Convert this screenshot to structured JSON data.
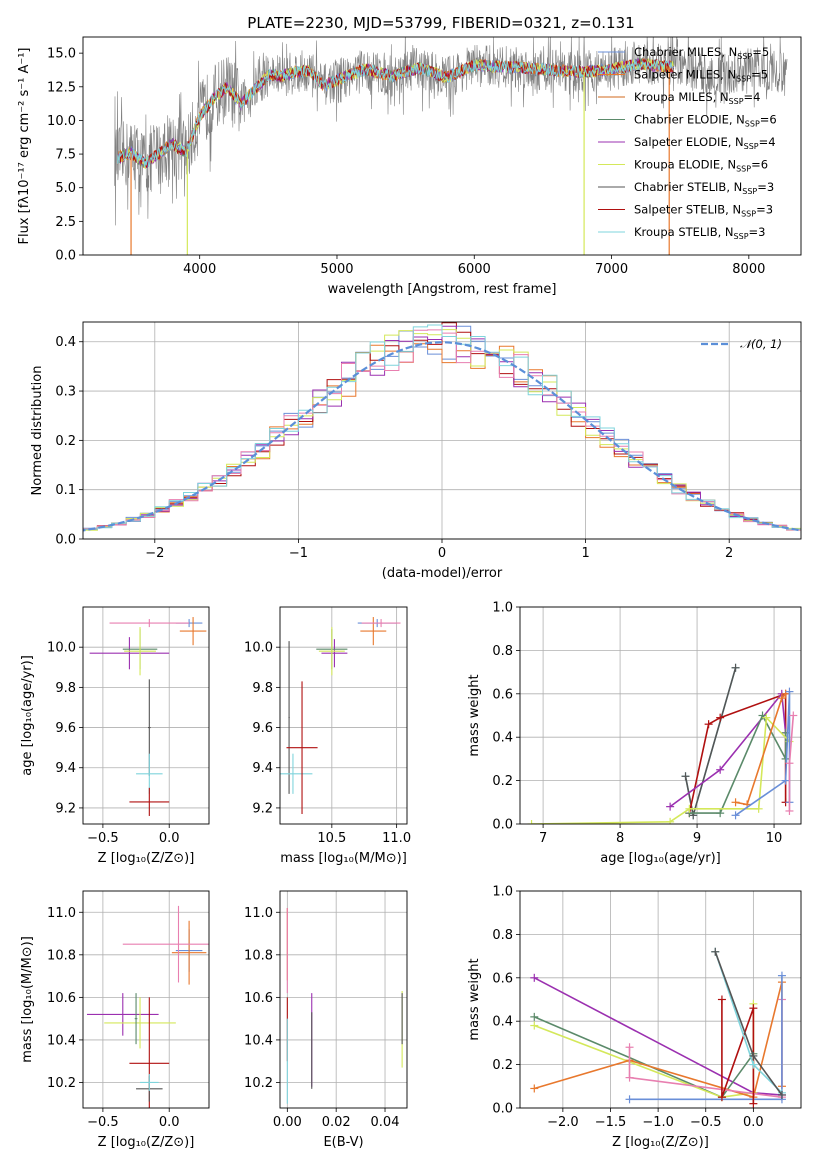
{
  "figure": {
    "title": "PLATE=2230, MJD=53799, FIBERID=0321, z=0.131"
  },
  "colors": {
    "Chabrier MILES": "#6a8fd8",
    "Salpeter MILES": "#e8782d",
    "Kroupa MILES": "#d2691e",
    "Chabrier ELODIE": "#5b8a6a",
    "Salpeter ELODIE": "#9b30b0",
    "Kroupa ELODIE": "#d4e85a",
    "Chabrier STELIB": "#555555",
    "Salpeter STELIB": "#b01010",
    "Kroupa STELIB": "#7fd4dc",
    "data": "#808080",
    "pink": "#e87fb0",
    "normal": "#5b8fd8"
  },
  "chart_data": [
    {
      "id": "spectrum",
      "type": "line",
      "title": "PLATE=2230, MJD=53799, FIBERID=0321, z=0.131",
      "xlabel": "wavelength [Angstrom, rest frame]",
      "ylabel": "Flux [fλ10⁻¹⁷ erg cm⁻² s⁻¹ A⁻¹]",
      "xlim": [
        3150,
        8380
      ],
      "ylim": [
        0,
        16.2
      ],
      "x_ticks": [
        4000,
        5000,
        6000,
        7000,
        8000
      ],
      "y_ticks": [
        0.0,
        2.5,
        5.0,
        7.5,
        10.0,
        12.5,
        15.0
      ],
      "grid": false,
      "legend_position": "right",
      "legend": [
        {
          "label": "Chabrier MILES, N",
          "sub": "SSP",
          "suffix": "=5",
          "color_key": "Chabrier MILES"
        },
        {
          "label": "Salpeter MILES, N",
          "sub": "SSP",
          "suffix": "=5",
          "color_key": "Salpeter MILES"
        },
        {
          "label": "Kroupa MILES, N",
          "sub": "SSP",
          "suffix": "=4",
          "color_key": "Kroupa MILES"
        },
        {
          "label": "Chabrier ELODIE, N",
          "sub": "SSP",
          "suffix": "=6",
          "color_key": "Chabrier ELODIE"
        },
        {
          "label": "Salpeter ELODIE, N",
          "sub": "SSP",
          "suffix": "=4",
          "color_key": "Salpeter ELODIE"
        },
        {
          "label": "Kroupa ELODIE, N",
          "sub": "SSP",
          "suffix": "=6",
          "color_key": "Kroupa ELODIE"
        },
        {
          "label": "Chabrier STELIB, N",
          "sub": "SSP",
          "suffix": "=3",
          "color_key": "Chabrier STELIB"
        },
        {
          "label": "Salpeter STELIB, N",
          "sub": "SSP",
          "suffix": "=3",
          "color_key": "Salpeter STELIB"
        },
        {
          "label": "Kroupa STELIB, N",
          "sub": "SSP",
          "suffix": "=3",
          "color_key": "Kroupa STELIB"
        }
      ],
      "continuum_x": [
        3400,
        3500,
        3600,
        3700,
        3800,
        3900,
        4000,
        4100,
        4200,
        4300,
        4400,
        4500,
        4600,
        4700,
        4800,
        4900,
        5000,
        5200,
        5400,
        5600,
        5800,
        6000,
        6200,
        6400,
        6600,
        6800,
        7000,
        7200,
        7400
      ],
      "continuum_y": [
        7.2,
        7.6,
        6.8,
        7.5,
        8.3,
        7.6,
        10.3,
        11.6,
        12.5,
        11.2,
        12.3,
        13.4,
        13.3,
        13.6,
        13.7,
        12.6,
        13.0,
        13.8,
        13.3,
        13.9,
        13.2,
        14.1,
        14.0,
        13.9,
        13.7,
        13.6,
        13.8,
        14.2,
        14.0
      ],
      "model_x_range": [
        3400,
        7450
      ],
      "data_x_range": [
        3380,
        8280
      ],
      "drops": [
        {
          "x": 3500,
          "color_key": "Salpeter MILES"
        },
        {
          "x": 3910,
          "color_key": "Kroupa ELODIE"
        },
        {
          "x": 6800,
          "color_key": "Kroupa ELODIE"
        },
        {
          "x": 7420,
          "color_key": "Salpeter MILES"
        }
      ]
    },
    {
      "id": "residuals",
      "type": "line",
      "xlabel": "(data-model)/error",
      "ylabel": "Normed distribution",
      "xlim": [
        -2.5,
        2.5
      ],
      "ylim": [
        0,
        0.44
      ],
      "x_ticks": [
        -2,
        -1,
        0,
        1,
        2
      ],
      "y_ticks": [
        0.0,
        0.1,
        0.2,
        0.3,
        0.4
      ],
      "grid": true,
      "legend_position": "top-right",
      "legend_label": "𝒩(0, 1)",
      "bin_width": 0.1,
      "series_colors": [
        "Chabrier MILES",
        "Salpeter MILES",
        "Salpeter STELIB",
        "Salpeter ELODIE",
        "Kroupa ELODIE",
        "pink",
        "Kroupa STELIB"
      ]
    },
    {
      "id": "age-vs-z",
      "type": "scatter",
      "xlabel": "Z [log₁₀(Z/Z⊙)]",
      "ylabel": "age  [log₁₀(age/yr)]",
      "xlim": [
        -0.65,
        0.3
      ],
      "ylim": [
        9.12,
        10.2
      ],
      "x_ticks": [
        -0.5,
        0.0
      ],
      "y_ticks": [
        9.2,
        9.4,
        9.6,
        9.8,
        10.0
      ],
      "grid": true,
      "points": [
        {
          "x": 0.15,
          "y": 10.12,
          "xe": 0.1,
          "ye": 0.02,
          "c": "Chabrier MILES"
        },
        {
          "x": 0.18,
          "y": 10.08,
          "xe": 0.1,
          "ye": 0.07,
          "c": "Salpeter MILES"
        },
        {
          "x": -0.15,
          "y": 10.12,
          "xe": 0.3,
          "ye": 0.02,
          "c": "pink"
        },
        {
          "x": -0.3,
          "y": 9.97,
          "xe": 0.3,
          "ye": 0.08,
          "c": "Salpeter ELODIE"
        },
        {
          "x": -0.22,
          "y": 9.99,
          "xe": 0.13,
          "ye": 0.1,
          "c": "Chabrier ELODIE"
        },
        {
          "x": -0.22,
          "y": 9.98,
          "xe": 0.12,
          "ye": 0.12,
          "c": "Kroupa ELODIE"
        },
        {
          "x": -0.15,
          "y": 9.6,
          "xe": 0.01,
          "ye": 0.24,
          "c": "Chabrier STELIB"
        },
        {
          "x": -0.15,
          "y": 9.37,
          "xe": 0.1,
          "ye": 0.1,
          "c": "Kroupa STELIB"
        },
        {
          "x": -0.15,
          "y": 9.23,
          "xe": 0.15,
          "ye": 0.07,
          "c": "Salpeter STELIB"
        }
      ]
    },
    {
      "id": "age-vs-mass",
      "type": "scatter",
      "xlabel": "mass [log₁₀(M/M⊙)]",
      "ylabel": "",
      "xlim": [
        10.1,
        11.08
      ],
      "ylim": [
        9.12,
        10.2
      ],
      "x_ticks": [
        10.5,
        11.0
      ],
      "y_ticks": [
        9.2,
        9.4,
        9.6,
        9.8,
        10.0
      ],
      "grid": true,
      "points": [
        {
          "x": 10.85,
          "y": 10.12,
          "xe": 0.15,
          "ye": 0.02,
          "c": "Chabrier MILES"
        },
        {
          "x": 10.82,
          "y": 10.08,
          "xe": 0.1,
          "ye": 0.07,
          "c": "Salpeter MILES"
        },
        {
          "x": 10.88,
          "y": 10.12,
          "xe": 0.15,
          "ye": 0.02,
          "c": "pink"
        },
        {
          "x": 10.52,
          "y": 9.97,
          "xe": 0.1,
          "ye": 0.07,
          "c": "Salpeter ELODIE"
        },
        {
          "x": 10.5,
          "y": 9.99,
          "xe": 0.12,
          "ye": 0.1,
          "c": "Chabrier ELODIE"
        },
        {
          "x": 10.5,
          "y": 9.98,
          "xe": 0.1,
          "ye": 0.12,
          "c": "Kroupa ELODIE"
        },
        {
          "x": 10.17,
          "y": 9.65,
          "xe": 0.005,
          "ye": 0.38,
          "c": "Chabrier STELIB"
        },
        {
          "x": 10.2,
          "y": 9.37,
          "xe": 0.15,
          "ye": 0.1,
          "c": "Kroupa STELIB"
        },
        {
          "x": 10.27,
          "y": 9.5,
          "xe": 0.12,
          "ye": 0.33,
          "c": "Salpeter STELIB"
        }
      ]
    },
    {
      "id": "weight-vs-age",
      "type": "line",
      "xlabel": "age  [log₁₀(age/yr)]",
      "ylabel": "mass weight",
      "xlim": [
        6.7,
        10.35
      ],
      "ylim": [
        0,
        1.0
      ],
      "x_ticks": [
        7,
        8,
        9,
        10
      ],
      "y_ticks": [
        0.0,
        0.2,
        0.4,
        0.6,
        0.8,
        1.0
      ],
      "grid": true,
      "series": [
        {
          "name": "",
          "c": "Kroupa STELIB",
          "x": [
            8.85,
            8.95,
            9.5
          ],
          "y": [
            0.22,
            0.04,
            0.72
          ]
        },
        {
          "name": "",
          "c": "Chabrier STELIB",
          "x": [
            8.85,
            8.95,
            9.5
          ],
          "y": [
            0.22,
            0.04,
            0.72
          ]
        },
        {
          "name": "",
          "c": "Salpeter STELIB",
          "x": [
            8.9,
            9.15,
            9.3,
            10.15,
            10.15
          ],
          "y": [
            0.05,
            0.46,
            0.49,
            0.6,
            0.1
          ]
        },
        {
          "name": "",
          "c": "Salpeter ELODIE",
          "x": [
            8.65,
            9.3,
            10.1,
            10.15
          ],
          "y": [
            0.08,
            0.25,
            0.6,
            0.42
          ]
        },
        {
          "name": "",
          "c": "Chabrier ELODIE",
          "x": [
            8.9,
            9.3,
            9.85,
            10.15,
            10.15
          ],
          "y": [
            0.05,
            0.05,
            0.5,
            0.3,
            0.42
          ]
        },
        {
          "name": "",
          "c": "Kroupa ELODIE",
          "x": [
            6.85,
            8.65,
            8.9,
            9.8,
            9.9,
            10.2
          ],
          "y": [
            0.0,
            0.01,
            0.07,
            0.07,
            0.49,
            0.38
          ]
        },
        {
          "name": "",
          "c": "Salpeter MILES",
          "x": [
            9.5,
            9.65,
            10.1,
            10.15
          ],
          "y": [
            0.1,
            0.09,
            0.58,
            0.6
          ]
        },
        {
          "name": "",
          "c": "Chabrier MILES",
          "x": [
            9.5,
            10.15,
            10.2,
            10.2
          ],
          "y": [
            0.04,
            0.2,
            0.61,
            0.1
          ]
        },
        {
          "name": "",
          "c": "pink",
          "x": [
            10.2,
            10.2,
            10.25
          ],
          "y": [
            0.06,
            0.28,
            0.5
          ]
        }
      ]
    },
    {
      "id": "mass-vs-z",
      "type": "scatter",
      "xlabel": "Z [log₁₀(Z/Z⊙)]",
      "ylabel": "mass [log₁₀(M/M⊙)]",
      "xlim": [
        -0.65,
        0.3
      ],
      "ylim": [
        10.08,
        11.1
      ],
      "x_ticks": [
        -0.5,
        0.0
      ],
      "y_ticks": [
        10.2,
        10.4,
        10.6,
        10.8,
        11.0
      ],
      "grid": true,
      "points": [
        {
          "x": 0.15,
          "y": 10.82,
          "xe": 0.1,
          "ye": 0.1,
          "c": "Chabrier MILES"
        },
        {
          "x": 0.15,
          "y": 10.81,
          "xe": 0.13,
          "ye": 0.15,
          "c": "Salpeter MILES"
        },
        {
          "x": 0.07,
          "y": 10.85,
          "xe": 0.42,
          "ye": 0.18,
          "c": "pink"
        },
        {
          "x": -0.35,
          "y": 10.52,
          "xe": 0.27,
          "ye": 0.1,
          "c": "Salpeter ELODIE"
        },
        {
          "x": -0.22,
          "y": 10.48,
          "xe": 0.27,
          "ye": 0.12,
          "c": "Kroupa ELODIE"
        },
        {
          "x": -0.25,
          "y": 10.5,
          "xe": 0.01,
          "ye": 0.12,
          "c": "Chabrier ELODIE"
        },
        {
          "x": -0.15,
          "y": 10.29,
          "xe": 0.15,
          "ye": 0.31,
          "c": "Salpeter STELIB"
        },
        {
          "x": -0.15,
          "y": 10.17,
          "xe": 0.1,
          "ye": 0.06,
          "c": "Chabrier STELIB"
        },
        {
          "x": -0.15,
          "y": 10.2,
          "xe": 0.07,
          "ye": 0.04,
          "c": "Kroupa STELIB"
        }
      ]
    },
    {
      "id": "mass-vs-ebv",
      "type": "scatter",
      "xlabel": "E(B-V)",
      "ylabel": "",
      "xlim": [
        -0.003,
        0.049
      ],
      "ylim": [
        10.08,
        11.1
      ],
      "x_ticks": [
        0.0,
        0.02,
        0.04
      ],
      "y_ticks": [
        10.2,
        10.4,
        10.6,
        10.8,
        11.0
      ],
      "grid": true,
      "points": [
        {
          "x": 0.0,
          "y": 10.85,
          "xe": 0.0,
          "ye": 0.17,
          "c": "Salpeter MILES"
        },
        {
          "x": 0.0,
          "y": 10.82,
          "xe": 0.0,
          "ye": 0.2,
          "c": "pink"
        },
        {
          "x": 0.0,
          "y": 10.45,
          "xe": 0.0,
          "ye": 0.15,
          "c": "Salpeter STELIB"
        },
        {
          "x": 0.0,
          "y": 10.3,
          "xe": 0.0,
          "ye": 0.2,
          "c": "Kroupa STELIB"
        },
        {
          "x": 0.01,
          "y": 10.4,
          "xe": 0.0,
          "ye": 0.22,
          "c": "Salpeter ELODIE"
        },
        {
          "x": 0.01,
          "y": 10.35,
          "xe": 0.0,
          "ye": 0.18,
          "c": "Chabrier STELIB"
        },
        {
          "x": 0.047,
          "y": 10.45,
          "xe": 0.0,
          "ye": 0.18,
          "c": "Kroupa ELODIE"
        },
        {
          "x": 0.047,
          "y": 10.5,
          "xe": 0.0,
          "ye": 0.12,
          "c": "Chabrier STELIB"
        }
      ]
    },
    {
      "id": "weight-vs-z",
      "type": "line",
      "xlabel": "Z [log₁₀(Z/Z⊙)]",
      "ylabel": "mass weight",
      "xlim": [
        -2.45,
        0.5
      ],
      "ylim": [
        0,
        1.0
      ],
      "x_ticks": [
        -2.0,
        -1.5,
        -1.0,
        -0.5,
        0.0
      ],
      "y_ticks": [
        0.0,
        0.2,
        0.4,
        0.6,
        0.8,
        1.0
      ],
      "grid": true,
      "series": [
        {
          "name": "",
          "c": "Salpeter ELODIE",
          "x": [
            -2.3,
            0.0,
            0.3
          ],
          "y": [
            0.6,
            0.07,
            0.06
          ]
        },
        {
          "name": "",
          "c": "Chabrier ELODIE",
          "x": [
            -2.3,
            -0.33,
            0.0
          ],
          "y": [
            0.42,
            0.05,
            0.25
          ]
        },
        {
          "name": "",
          "c": "Kroupa ELODIE",
          "x": [
            -2.3,
            -0.33,
            0.0,
            0.0
          ],
          "y": [
            0.38,
            0.05,
            0.07,
            0.48
          ]
        },
        {
          "name": "",
          "c": "Salpeter MILES",
          "x": [
            -2.3,
            -1.3,
            0.0,
            0.3,
            0.3
          ],
          "y": [
            0.09,
            0.22,
            0.05,
            0.58,
            0.1
          ]
        },
        {
          "name": "",
          "c": "pink",
          "x": [
            -1.3,
            -1.3,
            0.3,
            0.3
          ],
          "y": [
            0.28,
            0.14,
            0.05,
            0.5
          ]
        },
        {
          "name": "",
          "c": "Chabrier MILES",
          "x": [
            -1.3,
            0.3,
            0.3
          ],
          "y": [
            0.04,
            0.04,
            0.61
          ]
        },
        {
          "name": "",
          "c": "Salpeter STELIB",
          "x": [
            -0.33,
            -0.33,
            0.0,
            0.0
          ],
          "y": [
            0.5,
            0.05,
            0.46,
            0.02
          ]
        },
        {
          "name": "",
          "c": "Kroupa STELIB",
          "x": [
            -0.4,
            0.0,
            0.3
          ],
          "y": [
            0.72,
            0.2,
            0.07
          ]
        },
        {
          "name": "",
          "c": "Chabrier STELIB",
          "x": [
            -0.4,
            0.0,
            0.3
          ],
          "y": [
            0.72,
            0.24,
            0.06
          ]
        }
      ]
    }
  ]
}
